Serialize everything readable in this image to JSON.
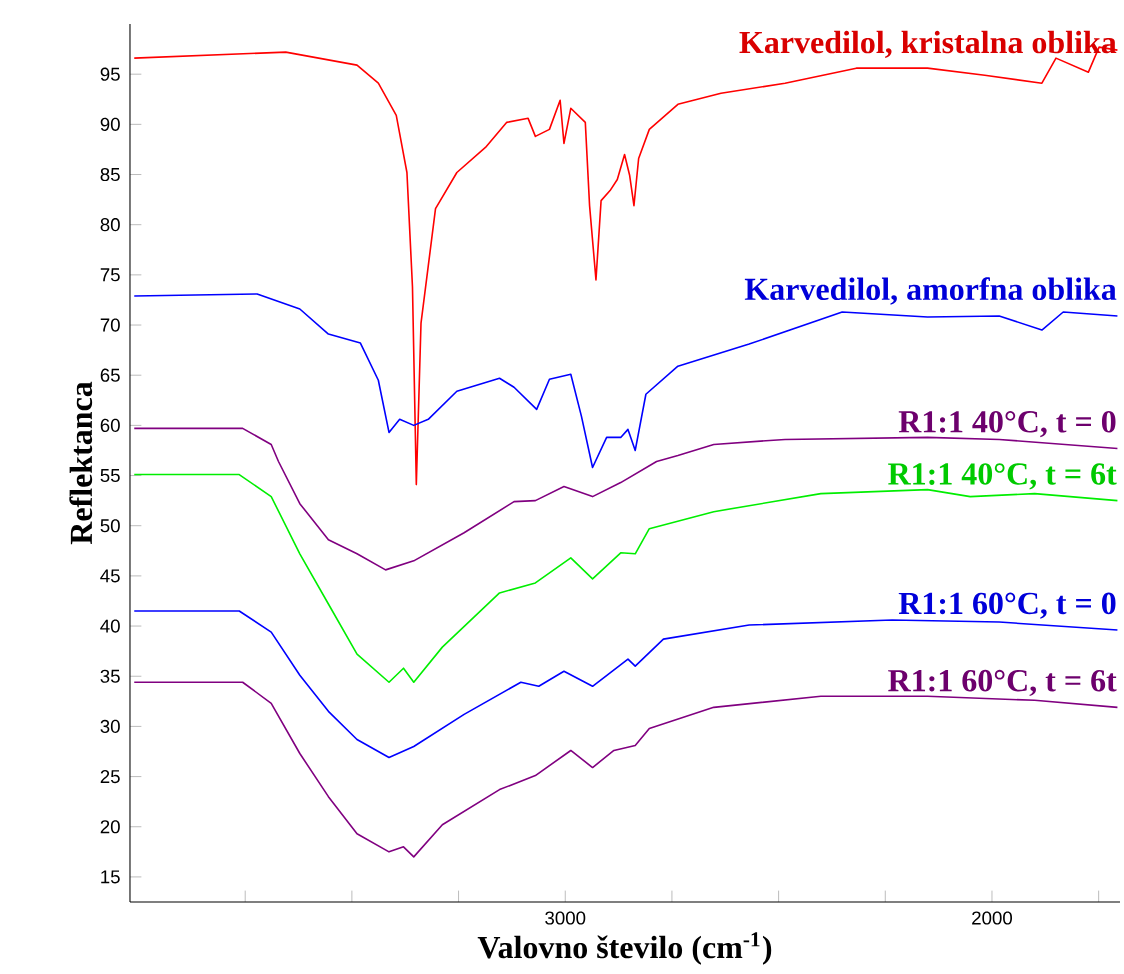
{
  "chart_data": {
    "type": "line",
    "xlabel": "Valovno število (cm$^{-1}$)",
    "ylabel": "Reflektanca",
    "xlim": [
      4020,
      1700
    ],
    "ylim": [
      12.5,
      100
    ],
    "xticks": [
      {
        "value": 3750,
        "label": null
      },
      {
        "value": 3500,
        "label": null
      },
      {
        "value": 3250,
        "label": null
      },
      3000,
      {
        "value": 2750,
        "label": null
      },
      {
        "value": 2500,
        "label": null
      },
      {
        "value": 2250,
        "label": null
      },
      2000,
      {
        "value": 1750,
        "label": null
      }
    ],
    "yticks": [
      15,
      20,
      25,
      30,
      35,
      40,
      45,
      50,
      55,
      60,
      65,
      70,
      75,
      80,
      85,
      90,
      95
    ],
    "grid": false,
    "legend": false,
    "marker": "none",
    "line_style": "solid",
    "x": [
      4010,
      3655,
      3488,
      3438,
      3396,
      3371,
      3358,
      3349,
      3338,
      3321,
      3304,
      3254,
      3187,
      3137,
      3087,
      3070,
      3037,
      3012,
      3003,
      2987,
      2953,
      2943,
      2928,
      2916,
      2895,
      2878,
      2861,
      2849,
      2839,
      2828,
      2803,
      2736,
      2635,
      2485,
      2318,
      2151,
      2017,
      1883,
      1850,
      1774,
      1749,
      1706
    ],
    "series": [
      {
        "name": "Karvedilol, kristalna oblika",
        "color": "#ff0000",
        "values": [
          96.6,
          97.2,
          95.9,
          94.1,
          90.9,
          85.2,
          73.8,
          54.1,
          70.2,
          75.9,
          81.6,
          85.2,
          87.7,
          90.2,
          90.6,
          88.8,
          89.5,
          92.4,
          88.1,
          91.6,
          90.2,
          81.9,
          74.5,
          82.4,
          83.4,
          84.5,
          87.0,
          84.9,
          81.9,
          86.6,
          89.5,
          92.0,
          93.1,
          94.1,
          95.6,
          95.6,
          94.9,
          94.1,
          96.6,
          95.2,
          97.7,
          97.4
        ]
      },
      {
        "name": "Karvedilol, amorfna oblika",
        "color": "#0000ff",
        "x": [
          4010,
          3722,
          3622,
          3555,
          3480,
          3438,
          3413,
          3388,
          3355,
          3321,
          3254,
          3154,
          3120,
          3067,
          3037,
          2987,
          2962,
          2936,
          2903,
          2870,
          2853,
          2836,
          2811,
          2736,
          2569,
          2351,
          2151,
          1983,
          1883,
          1833,
          1706
        ],
        "values": [
          72.9,
          73.1,
          71.6,
          69.1,
          68.2,
          64.5,
          59.3,
          60.6,
          60.0,
          60.6,
          63.4,
          64.7,
          63.8,
          61.6,
          64.6,
          65.1,
          60.9,
          55.8,
          58.8,
          58.8,
          59.6,
          57.5,
          63.1,
          65.9,
          68.1,
          71.3,
          70.8,
          70.9,
          69.5,
          71.3,
          70.9
        ]
      },
      {
        "name": "R1:1 40°C, t = 0",
        "color": "#800080",
        "x": [
          4010,
          3756,
          3689,
          3672,
          3622,
          3555,
          3488,
          3421,
          3355,
          3237,
          3120,
          3070,
          3003,
          2936,
          2870,
          2786,
          2736,
          2652,
          2485,
          2151,
          1983,
          1706
        ],
        "values": [
          59.7,
          59.7,
          58.1,
          56.4,
          52.2,
          48.6,
          47.2,
          45.6,
          46.5,
          49.3,
          52.4,
          52.5,
          53.9,
          52.9,
          54.3,
          56.4,
          57.0,
          58.1,
          58.6,
          58.8,
          58.6,
          57.7
        ]
      },
      {
        "name": "R1:1 40°C, t = 6t",
        "color": "#00ee00",
        "x": [
          4010,
          3764,
          3689,
          3622,
          3555,
          3488,
          3413,
          3379,
          3355,
          3288,
          3154,
          3070,
          2987,
          2936,
          2870,
          2836,
          2803,
          2652,
          2401,
          2151,
          2051,
          1900,
          1706
        ],
        "values": [
          55.1,
          55.1,
          52.9,
          47.2,
          42.2,
          37.2,
          34.4,
          35.8,
          34.4,
          37.9,
          43.3,
          44.3,
          46.8,
          44.7,
          47.3,
          47.2,
          49.7,
          51.4,
          53.2,
          53.6,
          52.9,
          53.2,
          52.5
        ]
      },
      {
        "name": "R1:1 60°C, t = 0",
        "color": "#0000ff",
        "x": [
          4010,
          3764,
          3689,
          3622,
          3555,
          3488,
          3413,
          3355,
          3237,
          3104,
          3062,
          3003,
          2936,
          2853,
          2836,
          2770,
          2569,
          2234,
          1983,
          1706
        ],
        "values": [
          41.5,
          41.5,
          39.4,
          35.1,
          31.5,
          28.7,
          26.9,
          28.0,
          31.2,
          34.4,
          34.0,
          35.5,
          34.0,
          36.7,
          36.0,
          38.7,
          40.1,
          40.6,
          40.4,
          39.6
        ]
      },
      {
        "name": "R1:1 60°C, t = 6t",
        "color": "#800080",
        "x": [
          4010,
          3756,
          3689,
          3622,
          3555,
          3488,
          3413,
          3379,
          3355,
          3288,
          3154,
          3070,
          2987,
          2936,
          2886,
          2836,
          2803,
          2652,
          2401,
          2151,
          1900,
          1706
        ],
        "values": [
          34.4,
          34.4,
          32.3,
          27.3,
          23.0,
          19.3,
          17.5,
          18.0,
          17.0,
          20.2,
          23.7,
          25.1,
          27.6,
          25.9,
          27.6,
          28.1,
          29.8,
          31.9,
          33.0,
          33.0,
          32.6,
          31.9
        ]
      }
    ]
  }
}
